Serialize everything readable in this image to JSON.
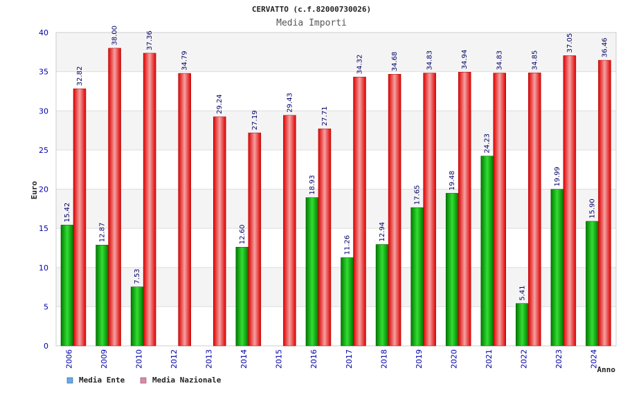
{
  "chart_data": {
    "type": "bar",
    "title": "CERVATTO (c.f.82000730026)",
    "subtitle": "Media Importi",
    "xlabel": "Anno",
    "ylabel": "Euro",
    "ylim": [
      0,
      40
    ],
    "yticks": [
      "0",
      "5",
      "10",
      "15",
      "20",
      "25",
      "30",
      "35",
      "40"
    ],
    "grid": true,
    "legend_position": "bottom-left",
    "categories": [
      "2006",
      "2009",
      "2010",
      "2012",
      "2013",
      "2014",
      "2015",
      "2016",
      "2017",
      "2018",
      "2019",
      "2020",
      "2021",
      "2022",
      "2023",
      "2024"
    ],
    "series": [
      {
        "name": "Media Ente",
        "color": "#00aa00",
        "legend_color": "#66aaee",
        "values": [
          15.42,
          12.87,
          7.53,
          null,
          null,
          12.6,
          null,
          18.93,
          11.26,
          12.94,
          17.65,
          19.48,
          24.23,
          5.41,
          19.99,
          15.9
        ],
        "labels": [
          "15.42",
          "12.87",
          "7.53",
          "",
          "",
          "12.60",
          "",
          "18.93",
          "11.26",
          "12.94",
          "17.65",
          "19.48",
          "24.23",
          "5.41",
          "19.99",
          "15.90"
        ]
      },
      {
        "name": "Media Nazionale",
        "color": "#ee1111",
        "legend_color": "#dd88aa",
        "values": [
          32.82,
          38.0,
          37.36,
          34.79,
          29.24,
          27.19,
          29.43,
          27.71,
          34.32,
          34.68,
          34.83,
          34.94,
          34.83,
          34.85,
          37.05,
          36.46
        ],
        "labels": [
          "32.82",
          "38.00",
          "37.36",
          "34.79",
          "29.24",
          "27.19",
          "29.43",
          "27.71",
          "34.32",
          "34.68",
          "34.83",
          "34.94",
          "34.83",
          "34.85",
          "37.05",
          "36.46"
        ]
      }
    ]
  }
}
